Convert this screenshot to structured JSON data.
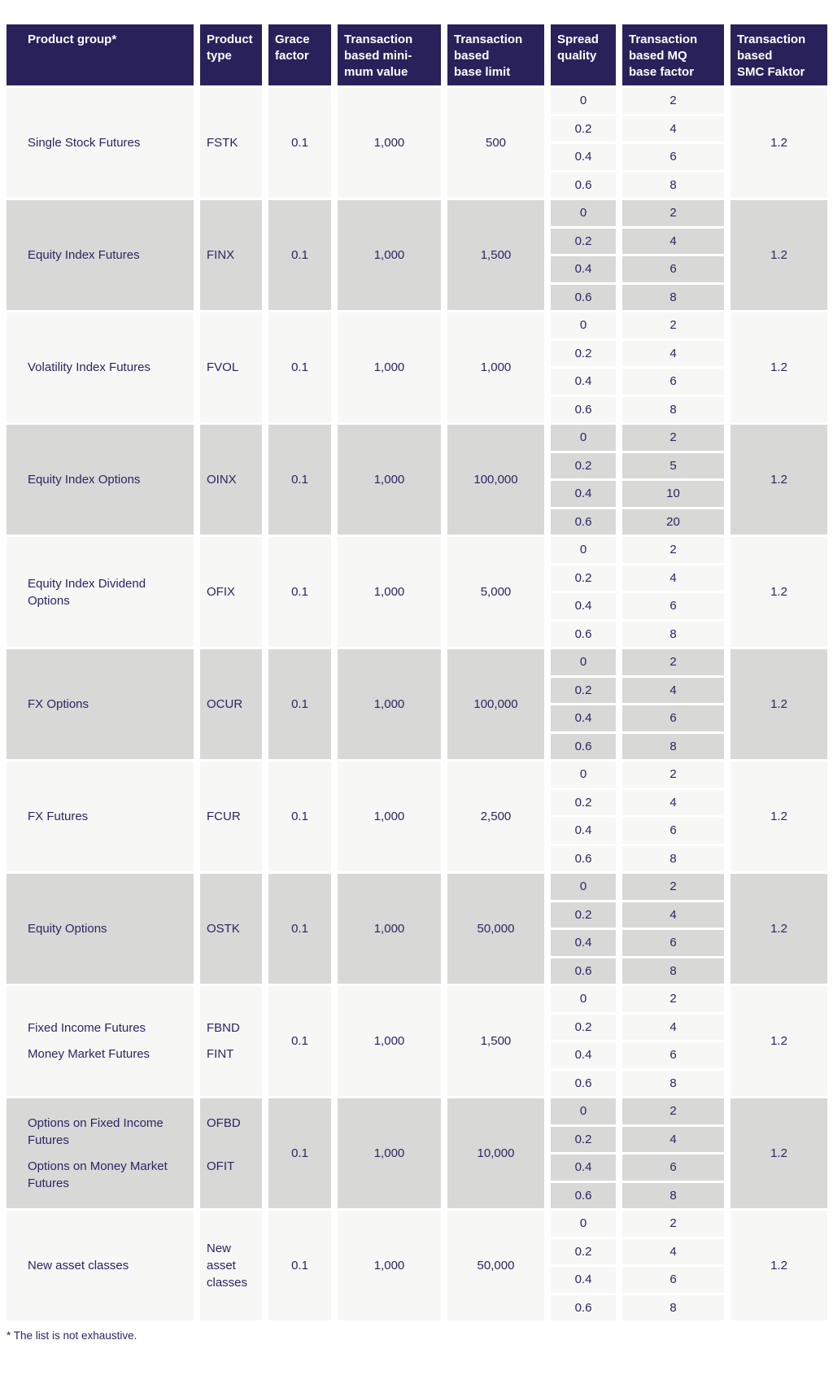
{
  "colors": {
    "header_bg": "#29215A",
    "row_light": "#F7F7F6",
    "row_dark": "#D8D8D7",
    "text": "#2A2663",
    "header_text": "#FFFFFF",
    "page_bg": "#FFFFFF"
  },
  "table": {
    "headers": [
      {
        "id": "product-group",
        "label": "Product group*"
      },
      {
        "id": "product-type",
        "label": "Product\ntype"
      },
      {
        "id": "grace-factor",
        "label": "Grace\nfactor"
      },
      {
        "id": "transaction-based-minimum-value",
        "label": "Transaction\nbased mini-\nmum value"
      },
      {
        "id": "transaction-based-base-limit",
        "label": "Transaction\nbased\nbase limit"
      },
      {
        "id": "spread-quality",
        "label": "Spread\nquality"
      },
      {
        "id": "transaction-based-mq-base-factor",
        "label": "Transaction\nbased MQ\nbase factor"
      },
      {
        "id": "transaction-based-smc-faktor",
        "label": "Transaction\nbased\nSMC Faktor"
      }
    ],
    "rows": [
      {
        "shade": "light",
        "group": [
          "Single Stock Futures"
        ],
        "type": [
          "FSTK"
        ],
        "grace_factor": "0.1",
        "min_value": "1,000",
        "base_limit": "500",
        "spread_rows": [
          {
            "quality": "0",
            "mq": "2"
          },
          {
            "quality": "0.2",
            "mq": "4"
          },
          {
            "quality": "0.4",
            "mq": "6"
          },
          {
            "quality": "0.6",
            "mq": "8"
          }
        ],
        "smc_factor": "1.2"
      },
      {
        "shade": "dark",
        "group": [
          "Equity Index Futures"
        ],
        "type": [
          "FINX"
        ],
        "grace_factor": "0.1",
        "min_value": "1,000",
        "base_limit": "1,500",
        "spread_rows": [
          {
            "quality": "0",
            "mq": "2"
          },
          {
            "quality": "0.2",
            "mq": "4"
          },
          {
            "quality": "0.4",
            "mq": "6"
          },
          {
            "quality": "0.6",
            "mq": "8"
          }
        ],
        "smc_factor": "1.2"
      },
      {
        "shade": "light",
        "group": [
          "Volatility Index Futures"
        ],
        "type": [
          "FVOL"
        ],
        "grace_factor": "0.1",
        "min_value": "1,000",
        "base_limit": "1,000",
        "spread_rows": [
          {
            "quality": "0",
            "mq": "2"
          },
          {
            "quality": "0.2",
            "mq": "4"
          },
          {
            "quality": "0.4",
            "mq": "6"
          },
          {
            "quality": "0.6",
            "mq": "8"
          }
        ],
        "smc_factor": "1.2"
      },
      {
        "shade": "dark",
        "group": [
          "Equity Index Options"
        ],
        "type": [
          "OINX"
        ],
        "grace_factor": "0.1",
        "min_value": "1,000",
        "base_limit": "100,000",
        "spread_rows": [
          {
            "quality": "0",
            "mq": "2"
          },
          {
            "quality": "0.2",
            "mq": "5"
          },
          {
            "quality": "0.4",
            "mq": "10"
          },
          {
            "quality": "0.6",
            "mq": "20"
          }
        ],
        "smc_factor": "1.2"
      },
      {
        "shade": "light",
        "group": [
          "Equity Index Dividend Options"
        ],
        "type": [
          "OFIX"
        ],
        "grace_factor": "0.1",
        "min_value": "1,000",
        "base_limit": "5,000",
        "spread_rows": [
          {
            "quality": "0",
            "mq": "2"
          },
          {
            "quality": "0.2",
            "mq": "4"
          },
          {
            "quality": "0.4",
            "mq": "6"
          },
          {
            "quality": "0.6",
            "mq": "8"
          }
        ],
        "smc_factor": "1.2"
      },
      {
        "shade": "dark",
        "group": [
          "FX Options"
        ],
        "type": [
          "OCUR"
        ],
        "grace_factor": "0.1",
        "min_value": "1,000",
        "base_limit": "100,000",
        "spread_rows": [
          {
            "quality": "0",
            "mq": "2"
          },
          {
            "quality": "0.2",
            "mq": "4"
          },
          {
            "quality": "0.4",
            "mq": "6"
          },
          {
            "quality": "0.6",
            "mq": "8"
          }
        ],
        "smc_factor": "1.2"
      },
      {
        "shade": "light",
        "group": [
          "FX Futures"
        ],
        "type": [
          "FCUR"
        ],
        "grace_factor": "0.1",
        "min_value": "1,000",
        "base_limit": "2,500",
        "spread_rows": [
          {
            "quality": "0",
            "mq": "2"
          },
          {
            "quality": "0.2",
            "mq": "4"
          },
          {
            "quality": "0.4",
            "mq": "6"
          },
          {
            "quality": "0.6",
            "mq": "8"
          }
        ],
        "smc_factor": "1.2"
      },
      {
        "shade": "dark",
        "group": [
          "Equity Options"
        ],
        "type": [
          "OSTK"
        ],
        "grace_factor": "0.1",
        "min_value": "1,000",
        "base_limit": "50,000",
        "spread_rows": [
          {
            "quality": "0",
            "mq": "2"
          },
          {
            "quality": "0.2",
            "mq": "4"
          },
          {
            "quality": "0.4",
            "mq": "6"
          },
          {
            "quality": "0.6",
            "mq": "8"
          }
        ],
        "smc_factor": "1.2"
      },
      {
        "shade": "light",
        "group": [
          "Fixed Income Futures",
          "Money Market Futures"
        ],
        "type": [
          "FBND",
          "FINT"
        ],
        "grace_factor": "0.1",
        "min_value": "1,000",
        "base_limit": "1,500",
        "spread_rows": [
          {
            "quality": "0",
            "mq": "2"
          },
          {
            "quality": "0.2",
            "mq": "4"
          },
          {
            "quality": "0.4",
            "mq": "6"
          },
          {
            "quality": "0.6",
            "mq": "8"
          }
        ],
        "smc_factor": "1.2"
      },
      {
        "shade": "dark",
        "group": [
          "Options on Fixed Income Futures",
          "Options on Money Market Futures"
        ],
        "type": [
          "OFBD",
          "OFIT"
        ],
        "grace_factor": "0.1",
        "min_value": "1,000",
        "base_limit": "10,000",
        "spread_rows": [
          {
            "quality": "0",
            "mq": "2"
          },
          {
            "quality": "0.2",
            "mq": "4"
          },
          {
            "quality": "0.4",
            "mq": "6"
          },
          {
            "quality": "0.6",
            "mq": "8"
          }
        ],
        "smc_factor": "1.2"
      },
      {
        "shade": "light",
        "group": [
          "New asset classes"
        ],
        "type": [
          "New asset classes"
        ],
        "grace_factor": "0.1",
        "min_value": "1,000",
        "base_limit": "50,000",
        "spread_rows": [
          {
            "quality": "0",
            "mq": "2"
          },
          {
            "quality": "0.2",
            "mq": "4"
          },
          {
            "quality": "0.4",
            "mq": "6"
          },
          {
            "quality": "0.6",
            "mq": "8"
          }
        ],
        "smc_factor": "1.2"
      }
    ],
    "footnote": "* The list is not exhaustive."
  }
}
